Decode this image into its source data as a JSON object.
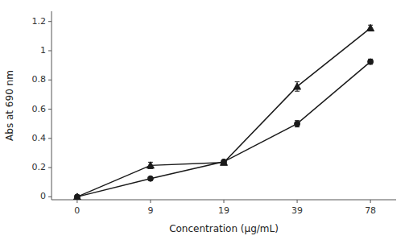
{
  "chart_data": {
    "type": "line",
    "xlabel": "Concentration (μg/mL)",
    "ylabel": "Abs at 690 nm",
    "categories": [
      "0",
      "9",
      "19",
      "39",
      "78"
    ],
    "series": [
      {
        "values": [
          0.0,
          0.215,
          0.235,
          0.755,
          1.155
        ],
        "errors": [
          0.005,
          0.022,
          0.012,
          0.032,
          0.02
        ],
        "marker": "triangle",
        "color": "#1a1a1a"
      },
      {
        "values": [
          0.0,
          0.125,
          0.24,
          0.5,
          0.925
        ],
        "errors": [
          0.005,
          0.01,
          0.01,
          0.022,
          0.018
        ],
        "marker": "circle",
        "color": "#1a1a1a"
      }
    ],
    "ylim": [
      -0.02,
      1.27
    ],
    "yticks": [
      0,
      0.2,
      0.4,
      0.6,
      0.8,
      1,
      1.2
    ],
    "grid": false
  }
}
